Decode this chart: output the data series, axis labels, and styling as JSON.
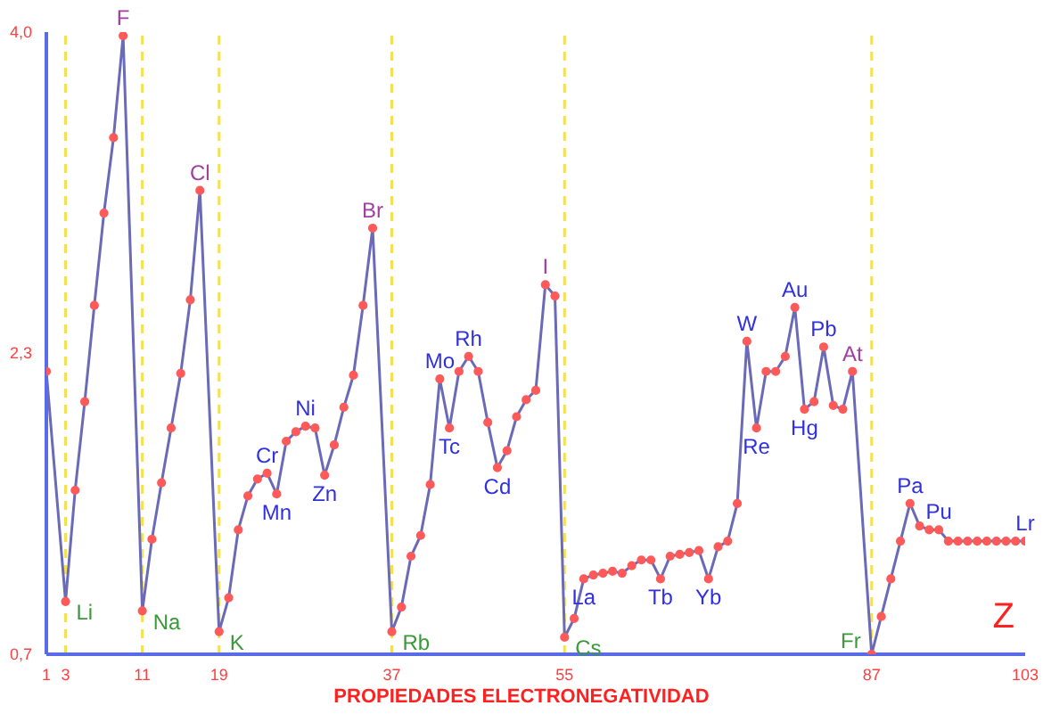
{
  "chart_data": {
    "type": "line",
    "title": "PROPIEDADES ELECTRONEGATIVIDAD",
    "xlabel": "Z",
    "x": [
      1,
      2,
      3,
      4,
      5,
      6,
      7,
      8,
      9,
      10,
      11,
      12,
      13,
      14,
      15,
      16,
      17,
      18,
      19,
      20,
      21,
      22,
      23,
      24,
      25,
      26,
      27,
      28,
      29,
      30,
      31,
      32,
      33,
      34,
      35,
      36,
      37,
      38,
      39,
      40,
      41,
      42,
      43,
      44,
      45,
      46,
      47,
      48,
      49,
      50,
      51,
      52,
      53,
      54,
      55,
      56,
      57,
      58,
      59,
      60,
      61,
      62,
      63,
      64,
      65,
      66,
      67,
      68,
      69,
      70,
      71,
      72,
      73,
      74,
      75,
      76,
      77,
      78,
      79,
      80,
      81,
      82,
      83,
      84,
      85,
      86,
      87,
      88,
      89,
      90,
      91,
      92,
      93,
      94,
      95,
      96,
      97,
      98,
      99,
      100,
      101,
      102,
      103
    ],
    "series": [
      {
        "color": "#6a6ab8",
        "values": [
          2.2,
          null,
          0.98,
          1.57,
          2.04,
          2.55,
          3.04,
          3.44,
          3.98,
          null,
          0.93,
          1.31,
          1.61,
          1.9,
          2.19,
          2.58,
          3.16,
          null,
          0.82,
          1.0,
          1.36,
          1.54,
          1.63,
          1.66,
          1.55,
          1.83,
          1.88,
          1.91,
          1.9,
          1.65,
          1.81,
          2.01,
          2.18,
          2.55,
          2.96,
          null,
          0.82,
          0.95,
          1.22,
          1.33,
          1.6,
          2.16,
          1.9,
          2.2,
          2.28,
          2.2,
          1.93,
          1.69,
          1.78,
          1.96,
          2.05,
          2.1,
          2.66,
          2.6,
          0.79,
          0.89,
          1.1,
          1.12,
          1.13,
          1.14,
          1.13,
          1.17,
          1.2,
          1.2,
          1.1,
          1.22,
          1.23,
          1.24,
          1.25,
          1.1,
          1.27,
          1.3,
          1.5,
          2.36,
          1.9,
          2.2,
          2.2,
          2.28,
          2.54,
          2.0,
          2.04,
          2.33,
          2.02,
          2.0,
          2.2,
          null,
          0.7,
          0.9,
          1.1,
          1.3,
          1.5,
          1.38,
          1.36,
          1.36,
          1.3,
          1.3,
          1.3,
          1.3,
          1.3,
          1.3,
          1.3,
          1.3,
          1.3
        ]
      }
    ],
    "xlim": [
      1,
      103
    ],
    "xticks": [
      1,
      3,
      11,
      19,
      37,
      55,
      87,
      103
    ],
    "ylim": [
      0.7,
      4.0
    ],
    "yticks": [
      {
        "value": 0.7,
        "label": "0,7"
      },
      {
        "value": 2.3,
        "label": "2,3"
      },
      {
        "value": 4.0,
        "label": "4,0"
      }
    ],
    "marker": "circle",
    "grid": false,
    "legend": false,
    "ref_lines": [
      {
        "axis": "x",
        "value": 3,
        "color": "#f5e050",
        "line_style": "dashed"
      },
      {
        "axis": "x",
        "value": 11,
        "color": "#f5e050",
        "line_style": "dashed"
      },
      {
        "axis": "x",
        "value": 19,
        "color": "#f5e050",
        "line_style": "dashed"
      },
      {
        "axis": "x",
        "value": 37,
        "color": "#f5e050",
        "line_style": "dashed"
      },
      {
        "axis": "x",
        "value": 55,
        "color": "#f5e050",
        "line_style": "dashed"
      },
      {
        "axis": "x",
        "value": 87,
        "color": "#f5e050",
        "line_style": "dashed"
      }
    ],
    "annotations": [
      {
        "text": "Li",
        "x": 3,
        "y": 0.98
      },
      {
        "text": "F",
        "x": 9,
        "y": 3.98
      },
      {
        "text": "Na",
        "x": 11,
        "y": 0.93
      },
      {
        "text": "Cl",
        "x": 17,
        "y": 3.16
      },
      {
        "text": "K",
        "x": 19,
        "y": 0.82
      },
      {
        "text": "Cr",
        "x": 24,
        "y": 1.66
      },
      {
        "text": "Mn",
        "x": 25,
        "y": 1.55
      },
      {
        "text": "Ni",
        "x": 28,
        "y": 1.91
      },
      {
        "text": "Zn",
        "x": 30,
        "y": 1.65
      },
      {
        "text": "Br",
        "x": 35,
        "y": 2.96
      },
      {
        "text": "Rb",
        "x": 37,
        "y": 0.82
      },
      {
        "text": "Mo",
        "x": 42,
        "y": 2.16
      },
      {
        "text": "Tc",
        "x": 43,
        "y": 1.9
      },
      {
        "text": "Rh",
        "x": 45,
        "y": 2.28
      },
      {
        "text": "Cd",
        "x": 48,
        "y": 1.69
      },
      {
        "text": "I",
        "x": 53,
        "y": 2.66
      },
      {
        "text": "Cs",
        "x": 55,
        "y": 0.79
      },
      {
        "text": "La",
        "x": 57,
        "y": 1.1
      },
      {
        "text": "Tb",
        "x": 65,
        "y": 1.1
      },
      {
        "text": "Yb",
        "x": 70,
        "y": 1.1
      },
      {
        "text": "W",
        "x": 74,
        "y": 2.36
      },
      {
        "text": "Re",
        "x": 75,
        "y": 1.9
      },
      {
        "text": "Au",
        "x": 79,
        "y": 2.54
      },
      {
        "text": "Hg",
        "x": 80,
        "y": 2.0
      },
      {
        "text": "Pb",
        "x": 82,
        "y": 2.33
      },
      {
        "text": "At",
        "x": 85,
        "y": 2.2
      },
      {
        "text": "Fr",
        "x": 87,
        "y": 0.7
      },
      {
        "text": "Pa",
        "x": 91,
        "y": 1.5
      },
      {
        "text": "Pu",
        "x": 94,
        "y": 1.36
      },
      {
        "text": "Lr",
        "x": 103,
        "y": 1.3
      }
    ]
  }
}
